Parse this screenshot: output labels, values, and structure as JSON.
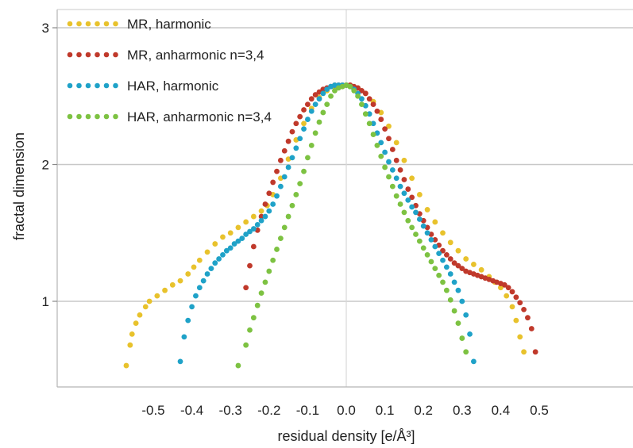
{
  "chart_data": {
    "type": "scatter",
    "title": "",
    "xlabel": "residual density [e/Å³]",
    "ylabel": "fractal dimension",
    "xlim": [
      -0.6,
      0.6
    ],
    "ylim": [
      0.4,
      3.1
    ],
    "x_ticks": [
      -0.5,
      -0.4,
      -0.3,
      -0.2,
      -0.1,
      0.0,
      0.1,
      0.2,
      0.3,
      0.4,
      0.5
    ],
    "x_tick_labels": [
      "-0.5",
      "-0.4",
      "-0.3",
      "-0.2",
      "-0.1",
      "0.0",
      "0.1",
      "0.2",
      "0.3",
      "0.4",
      "0.5"
    ],
    "y_ticks": [
      1,
      2,
      3
    ],
    "y_tick_labels": [
      "1",
      "2",
      "3"
    ],
    "grid": "horizontal lines at y ticks, vertical line at x = 0",
    "legend_position": "top-left",
    "series": [
      {
        "name": "MR, harmonic",
        "color": "#E8C22C",
        "x": [
          -0.57,
          -0.56,
          -0.555,
          -0.545,
          -0.535,
          -0.52,
          -0.51,
          -0.49,
          -0.47,
          -0.45,
          -0.43,
          -0.41,
          -0.395,
          -0.38,
          -0.36,
          -0.34,
          -0.32,
          -0.3,
          -0.28,
          -0.26,
          -0.24,
          -0.22,
          -0.205,
          -0.19,
          -0.17,
          -0.15,
          -0.13,
          -0.11,
          -0.09,
          -0.07,
          -0.05,
          -0.03,
          -0.01,
          0.0,
          0.01,
          0.03,
          0.05,
          0.07,
          0.09,
          0.11,
          0.13,
          0.15,
          0.17,
          0.19,
          0.21,
          0.23,
          0.25,
          0.27,
          0.29,
          0.31,
          0.33,
          0.35,
          0.37,
          0.385,
          0.4,
          0.415,
          0.43,
          0.44,
          0.45,
          0.46
        ],
        "y": [
          0.53,
          0.68,
          0.76,
          0.84,
          0.9,
          0.96,
          1.0,
          1.04,
          1.08,
          1.12,
          1.15,
          1.2,
          1.25,
          1.3,
          1.36,
          1.42,
          1.47,
          1.5,
          1.54,
          1.58,
          1.62,
          1.66,
          1.7,
          1.78,
          1.9,
          2.04,
          2.18,
          2.3,
          2.41,
          2.49,
          2.54,
          2.57,
          2.58,
          2.58,
          2.58,
          2.56,
          2.52,
          2.46,
          2.38,
          2.28,
          2.16,
          2.03,
          1.9,
          1.78,
          1.67,
          1.58,
          1.5,
          1.43,
          1.37,
          1.31,
          1.27,
          1.23,
          1.18,
          1.14,
          1.1,
          1.04,
          0.96,
          0.86,
          0.74,
          0.63
        ]
      },
      {
        "name": "MR, anharmonic n=3,4",
        "color": "#C0392B",
        "x": [
          -0.26,
          -0.25,
          -0.24,
          -0.23,
          -0.22,
          -0.21,
          -0.2,
          -0.19,
          -0.18,
          -0.17,
          -0.16,
          -0.15,
          -0.14,
          -0.13,
          -0.12,
          -0.11,
          -0.1,
          -0.09,
          -0.08,
          -0.07,
          -0.06,
          -0.05,
          -0.04,
          -0.03,
          -0.02,
          -0.01,
          0.0,
          0.01,
          0.02,
          0.03,
          0.04,
          0.05,
          0.06,
          0.07,
          0.08,
          0.09,
          0.1,
          0.11,
          0.12,
          0.13,
          0.14,
          0.15,
          0.16,
          0.17,
          0.18,
          0.19,
          0.2,
          0.21,
          0.22,
          0.23,
          0.24,
          0.25,
          0.26,
          0.27,
          0.28,
          0.29,
          0.3,
          0.31,
          0.32,
          0.33,
          0.34,
          0.35,
          0.36,
          0.37,
          0.38,
          0.39,
          0.4,
          0.41,
          0.42,
          0.43,
          0.44,
          0.45,
          0.46,
          0.47,
          0.48,
          0.49
        ],
        "y": [
          1.1,
          1.26,
          1.4,
          1.52,
          1.62,
          1.71,
          1.79,
          1.87,
          1.95,
          2.03,
          2.1,
          2.17,
          2.24,
          2.3,
          2.35,
          2.4,
          2.44,
          2.48,
          2.51,
          2.53,
          2.55,
          2.56,
          2.57,
          2.58,
          2.58,
          2.58,
          2.58,
          2.58,
          2.57,
          2.56,
          2.54,
          2.52,
          2.48,
          2.44,
          2.39,
          2.33,
          2.26,
          2.19,
          2.11,
          2.03,
          1.96,
          1.89,
          1.82,
          1.76,
          1.7,
          1.64,
          1.59,
          1.54,
          1.49,
          1.45,
          1.41,
          1.37,
          1.34,
          1.31,
          1.28,
          1.26,
          1.24,
          1.22,
          1.21,
          1.2,
          1.19,
          1.18,
          1.17,
          1.16,
          1.15,
          1.14,
          1.13,
          1.12,
          1.1,
          1.07,
          1.03,
          0.99,
          0.94,
          0.88,
          0.8,
          0.63
        ]
      },
      {
        "name": "HAR, harmonic",
        "color": "#1FA2C8",
        "x": [
          -0.43,
          -0.42,
          -0.41,
          -0.4,
          -0.39,
          -0.38,
          -0.37,
          -0.36,
          -0.35,
          -0.34,
          -0.33,
          -0.32,
          -0.31,
          -0.3,
          -0.29,
          -0.28,
          -0.27,
          -0.26,
          -0.25,
          -0.24,
          -0.23,
          -0.22,
          -0.21,
          -0.2,
          -0.19,
          -0.18,
          -0.17,
          -0.16,
          -0.15,
          -0.14,
          -0.13,
          -0.12,
          -0.11,
          -0.1,
          -0.09,
          -0.08,
          -0.07,
          -0.06,
          -0.05,
          -0.04,
          -0.03,
          -0.02,
          -0.01,
          0.0,
          0.01,
          0.02,
          0.03,
          0.04,
          0.05,
          0.06,
          0.07,
          0.08,
          0.09,
          0.1,
          0.11,
          0.12,
          0.13,
          0.14,
          0.15,
          0.16,
          0.17,
          0.18,
          0.19,
          0.2,
          0.21,
          0.22,
          0.23,
          0.24,
          0.25,
          0.26,
          0.27,
          0.28,
          0.29,
          0.3,
          0.31,
          0.32,
          0.33
        ],
        "y": [
          0.56,
          0.74,
          0.86,
          0.96,
          1.04,
          1.1,
          1.15,
          1.2,
          1.24,
          1.28,
          1.31,
          1.34,
          1.37,
          1.39,
          1.42,
          1.44,
          1.46,
          1.49,
          1.51,
          1.53,
          1.56,
          1.59,
          1.62,
          1.66,
          1.71,
          1.77,
          1.84,
          1.91,
          1.98,
          2.05,
          2.12,
          2.19,
          2.26,
          2.33,
          2.39,
          2.44,
          2.48,
          2.52,
          2.55,
          2.57,
          2.58,
          2.58,
          2.58,
          2.58,
          2.57,
          2.55,
          2.52,
          2.48,
          2.43,
          2.37,
          2.3,
          2.23,
          2.16,
          2.09,
          2.02,
          1.96,
          1.9,
          1.84,
          1.79,
          1.74,
          1.69,
          1.65,
          1.6,
          1.55,
          1.5,
          1.45,
          1.4,
          1.35,
          1.3,
          1.25,
          1.2,
          1.14,
          1.08,
          1.0,
          0.9,
          0.76,
          0.56
        ]
      },
      {
        "name": "HAR, anharmonic n=3,4",
        "color": "#7DC242",
        "x": [
          -0.28,
          -0.26,
          -0.25,
          -0.24,
          -0.23,
          -0.22,
          -0.21,
          -0.2,
          -0.19,
          -0.18,
          -0.17,
          -0.16,
          -0.15,
          -0.14,
          -0.13,
          -0.12,
          -0.11,
          -0.1,
          -0.09,
          -0.08,
          -0.07,
          -0.06,
          -0.05,
          -0.04,
          -0.03,
          -0.02,
          -0.01,
          0.0,
          0.01,
          0.02,
          0.03,
          0.04,
          0.05,
          0.06,
          0.07,
          0.08,
          0.09,
          0.1,
          0.11,
          0.12,
          0.13,
          0.14,
          0.15,
          0.16,
          0.17,
          0.18,
          0.19,
          0.2,
          0.21,
          0.22,
          0.23,
          0.24,
          0.25,
          0.26,
          0.27,
          0.28,
          0.29,
          0.3,
          0.31
        ],
        "y": [
          0.53,
          0.68,
          0.79,
          0.88,
          0.97,
          1.06,
          1.14,
          1.22,
          1.3,
          1.38,
          1.46,
          1.54,
          1.62,
          1.7,
          1.78,
          1.86,
          1.95,
          2.05,
          2.14,
          2.23,
          2.31,
          2.38,
          2.44,
          2.5,
          2.54,
          2.56,
          2.57,
          2.58,
          2.57,
          2.54,
          2.5,
          2.44,
          2.37,
          2.3,
          2.22,
          2.14,
          2.06,
          1.98,
          1.91,
          1.84,
          1.77,
          1.71,
          1.65,
          1.59,
          1.54,
          1.49,
          1.44,
          1.39,
          1.34,
          1.29,
          1.24,
          1.19,
          1.14,
          1.08,
          1.01,
          0.93,
          0.84,
          0.73,
          0.63
        ]
      }
    ]
  }
}
